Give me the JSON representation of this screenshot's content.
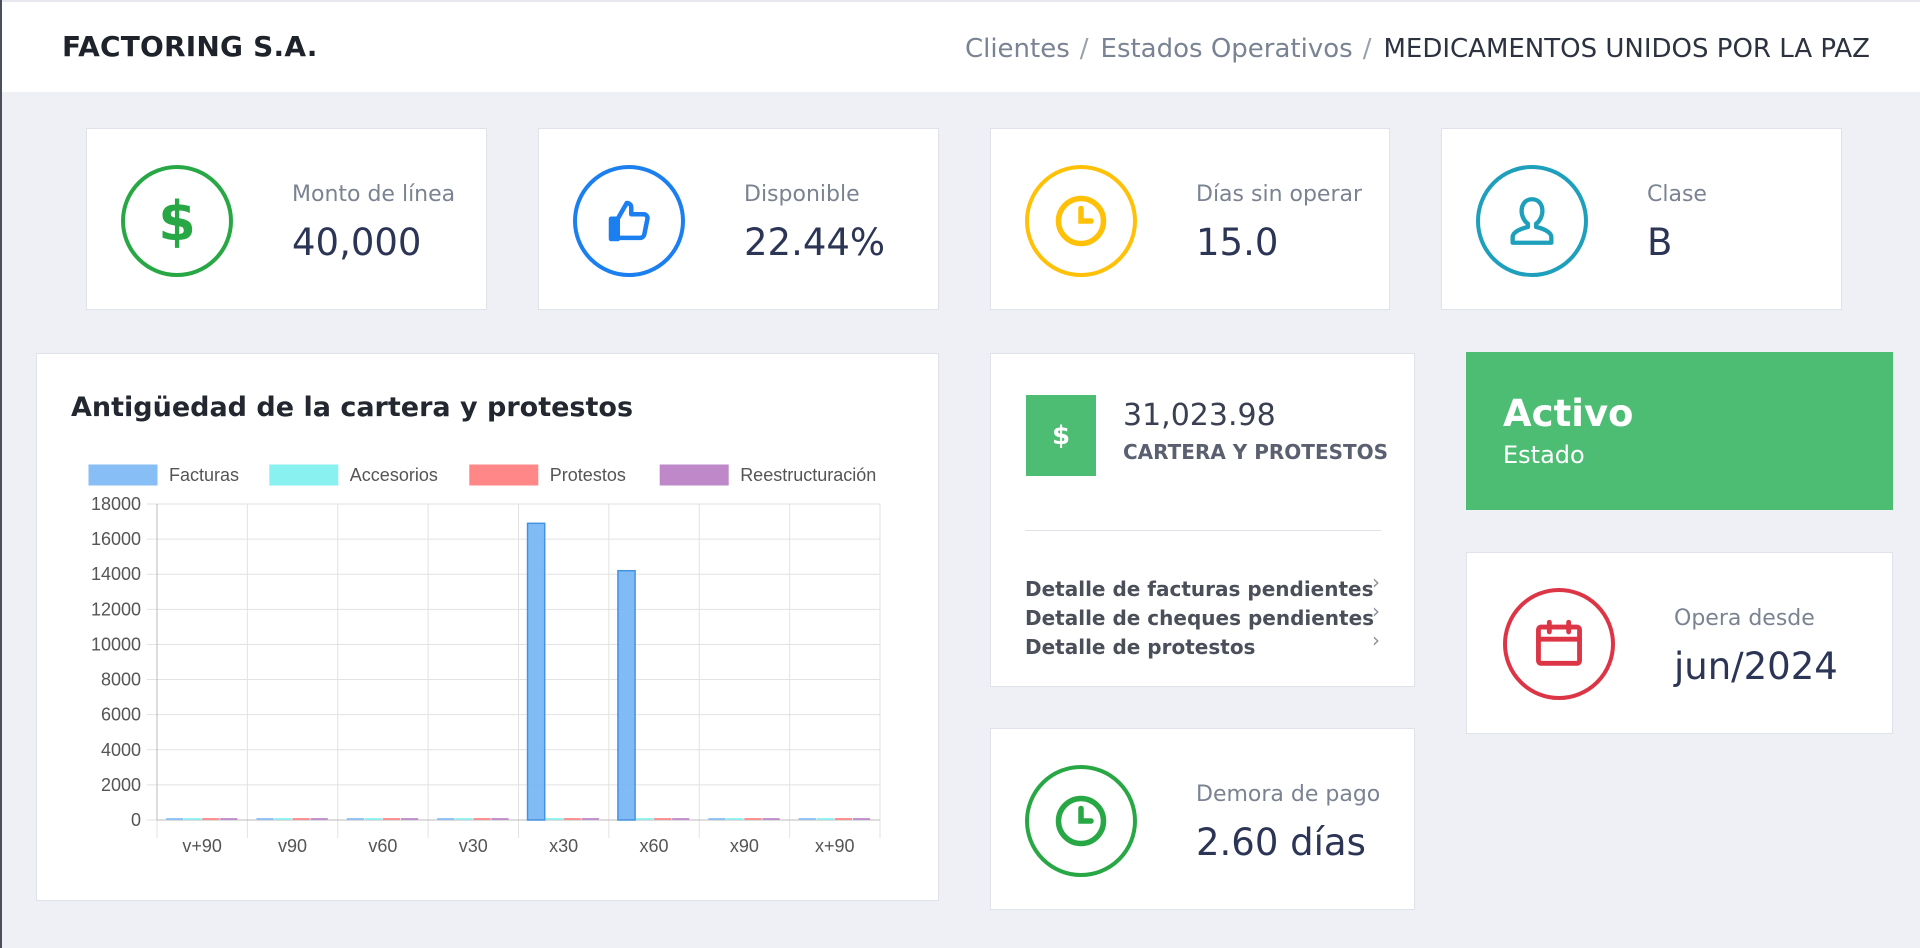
{
  "header": {
    "brand": "FACTORING S.A.",
    "breadcrumbs": [
      "Clientes",
      "Estados Operativos",
      "MEDICAMENTOS UNIDOS POR LA PAZ"
    ],
    "separator": "/"
  },
  "stats": [
    {
      "label": "Monto de línea",
      "value": "40,000",
      "icon": "dollar-icon",
      "color": "#28a745"
    },
    {
      "label": "Disponible",
      "value": "22.44%",
      "icon": "thumbs-up-icon",
      "color": "#1b7ff0"
    },
    {
      "label": "Días sin operar",
      "value": "15.0",
      "icon": "clock-icon",
      "color": "#ffc107"
    },
    {
      "label": "Clase",
      "value": "B",
      "icon": "user-icon",
      "color": "#1ea0bd"
    }
  ],
  "chart_data": {
    "type": "bar",
    "title": "Antigüedad de la cartera y protestos",
    "categories": [
      "v+90",
      "v90",
      "v60",
      "v30",
      "x30",
      "x60",
      "x90",
      "x+90"
    ],
    "series": [
      {
        "name": "Facturas",
        "values": [
          0,
          0,
          0,
          0,
          16900,
          14200,
          0,
          0
        ],
        "color": "#7ab8f5"
      },
      {
        "name": "Accesorios",
        "values": [
          0,
          0,
          0,
          0,
          0,
          0,
          0,
          0
        ],
        "color": "#7ef0f0"
      },
      {
        "name": "Protestos",
        "values": [
          0,
          0,
          0,
          0,
          0,
          0,
          0,
          0
        ],
        "color": "#ff7b7b"
      },
      {
        "name": "Reestructuración",
        "values": [
          0,
          0,
          0,
          0,
          0,
          0,
          0,
          0
        ],
        "color": "#b87cc4"
      }
    ],
    "ylim": [
      0,
      18000
    ],
    "yticks": [
      0,
      2000,
      4000,
      6000,
      8000,
      10000,
      12000,
      14000,
      16000,
      18000
    ],
    "legend_position": "top",
    "grid": true
  },
  "cartera": {
    "icon_symbol": "$",
    "amount": "31,023.98",
    "label": "CARTERA Y PROTESTOS",
    "links": [
      "Detalle de facturas pendientes",
      "Detalle de cheques pendientes",
      "Detalle de protestos"
    ],
    "chevron": "›"
  },
  "demora": {
    "label": "Demora de pago",
    "value": "2.60 días"
  },
  "estado": {
    "title": "Activo",
    "subtitle": "Estado"
  },
  "opera": {
    "label": "Opera desde",
    "value": "jun/2024"
  }
}
